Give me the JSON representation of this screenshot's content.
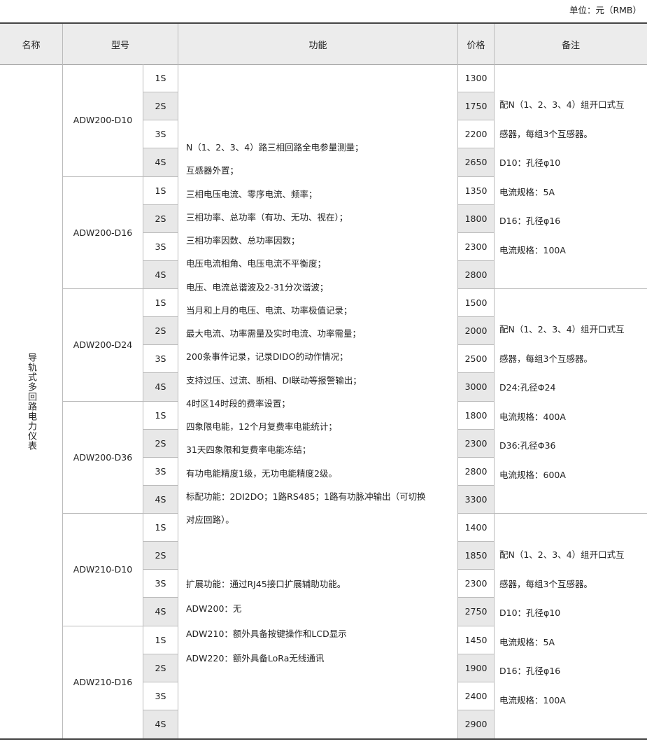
{
  "unit_label": "单位：元（RMB）",
  "headers": {
    "name": "名称",
    "model": "型号",
    "function": "功能",
    "price": "价格",
    "remark": "备注"
  },
  "product_name": "导轨式多回路电力仪表",
  "groups": [
    {
      "model": "ADW200-D10",
      "variants": [
        "1S",
        "2S",
        "3S",
        "4S"
      ],
      "prices": [
        "1300",
        "1750",
        "2200",
        "2650"
      ]
    },
    {
      "model": "ADW200-D16",
      "variants": [
        "1S",
        "2S",
        "3S",
        "4S"
      ],
      "prices": [
        "1350",
        "1800",
        "2300",
        "2800"
      ]
    },
    {
      "model": "ADW200-D24",
      "variants": [
        "1S",
        "2S",
        "3S",
        "4S"
      ],
      "prices": [
        "1500",
        "2000",
        "2500",
        "3000"
      ]
    },
    {
      "model": "ADW200-D36",
      "variants": [
        "1S",
        "2S",
        "3S",
        "4S"
      ],
      "prices": [
        "1800",
        "2300",
        "2800",
        "3300"
      ]
    },
    {
      "model": "ADW210-D10",
      "variants": [
        "1S",
        "2S",
        "3S",
        "4S"
      ],
      "prices": [
        "1400",
        "1850",
        "2300",
        "2750"
      ]
    },
    {
      "model": "ADW210-D16",
      "variants": [
        "1S",
        "2S",
        "3S",
        "4S"
      ],
      "prices": [
        "1450",
        "1900",
        "2400",
        "2900"
      ]
    }
  ],
  "functions_main": [
    "N（1、2、3、4）路三相回路全电参量测量；",
    "互感器外置；",
    "三相电压电流、零序电流、频率；",
    "三相功率、总功率（有功、无功、视在）；",
    "三相功率因数、总功率因数；",
    "电压电流相角、电压电流不平衡度；",
    "电压、电流总谐波及2-31分次谐波；",
    "当月和上月的电压、电流、功率极值记录；",
    "最大电流、功率需量及实时电流、功率需量；",
    "200条事件记录，记录DIDO的动作情况；",
    "支持过压、过流、断相、DI联动等报警输出；",
    "4时区14时段的费率设置；",
    "四象限电能，12个月复费率电能统计；",
    "31天四象限和复费率电能冻结；",
    "有功电能精度1级，无功电能精度2级。",
    "标配功能：2DI2DO；1路RS485；1路有功脉冲输出（可切换",
    "对应回路）。"
  ],
  "functions_ext": [
    "扩展功能：通过RJ45接口扩展辅助功能。",
    "ADW200：无",
    "ADW210：额外具备按键操作和LCD显示",
    "ADW220：额外具备LoRa无线通讯"
  ],
  "remarks": [
    [
      "配N（1、2、3、4）组开口式互",
      "感器，每组3个互感器。",
      "D10：孔径φ10",
      "电流规格：5A",
      "D16：孔径φ16",
      "电流规格：100A"
    ],
    [
      "配N（1、2、3、4）组开口式互",
      "感器，每组3个互感器。",
      "D24:孔径Φ24",
      "电流规格：400A",
      "D36:孔径Φ36",
      "电流规格：600A"
    ],
    [
      "配N（1、2、3、4）组开口式互",
      "感器，每组3个互感器。",
      "D10：孔径φ10",
      "电流规格：5A",
      "D16：孔径φ16",
      "电流规格：100A"
    ]
  ],
  "colors": {
    "header_bg": "#ececec",
    "shade": "#e8e8e8",
    "rule": "#444444"
  }
}
